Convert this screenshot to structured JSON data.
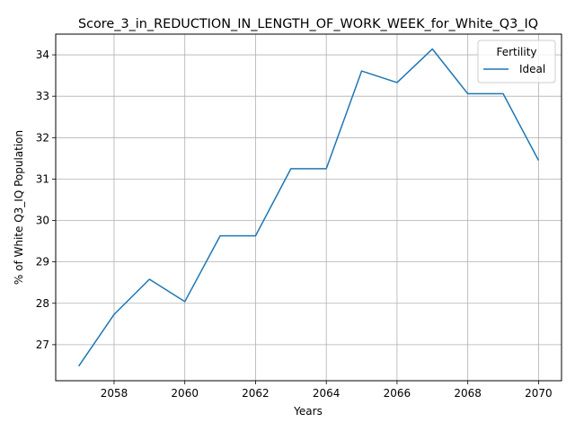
{
  "chart_data": {
    "type": "line",
    "title": "Score_3_in_REDUCTION_IN_LENGTH_OF_WORK_WEEK_for_White_Q3_IQ",
    "xlabel": "Years",
    "ylabel": "% of White Q3_IQ Population",
    "xlim": [
      2056.35,
      2070.65
    ],
    "ylim": [
      26.13,
      34.5
    ],
    "xticks": [
      2058,
      2060,
      2062,
      2064,
      2066,
      2068,
      2070
    ],
    "yticks": [
      27,
      28,
      29,
      30,
      31,
      32,
      33,
      34
    ],
    "grid": true,
    "legend": {
      "title": "Fertility",
      "position": "upper right"
    },
    "series": [
      {
        "name": "Ideal",
        "color": "#1f77b4",
        "x": [
          2057,
          2058,
          2059,
          2060,
          2061,
          2062,
          2063,
          2064,
          2065,
          2066,
          2067,
          2068,
          2069,
          2070
        ],
        "y": [
          26.48,
          27.73,
          28.58,
          28.04,
          29.63,
          29.63,
          31.25,
          31.25,
          33.61,
          33.33,
          34.14,
          33.06,
          33.06,
          31.45
        ]
      }
    ]
  }
}
